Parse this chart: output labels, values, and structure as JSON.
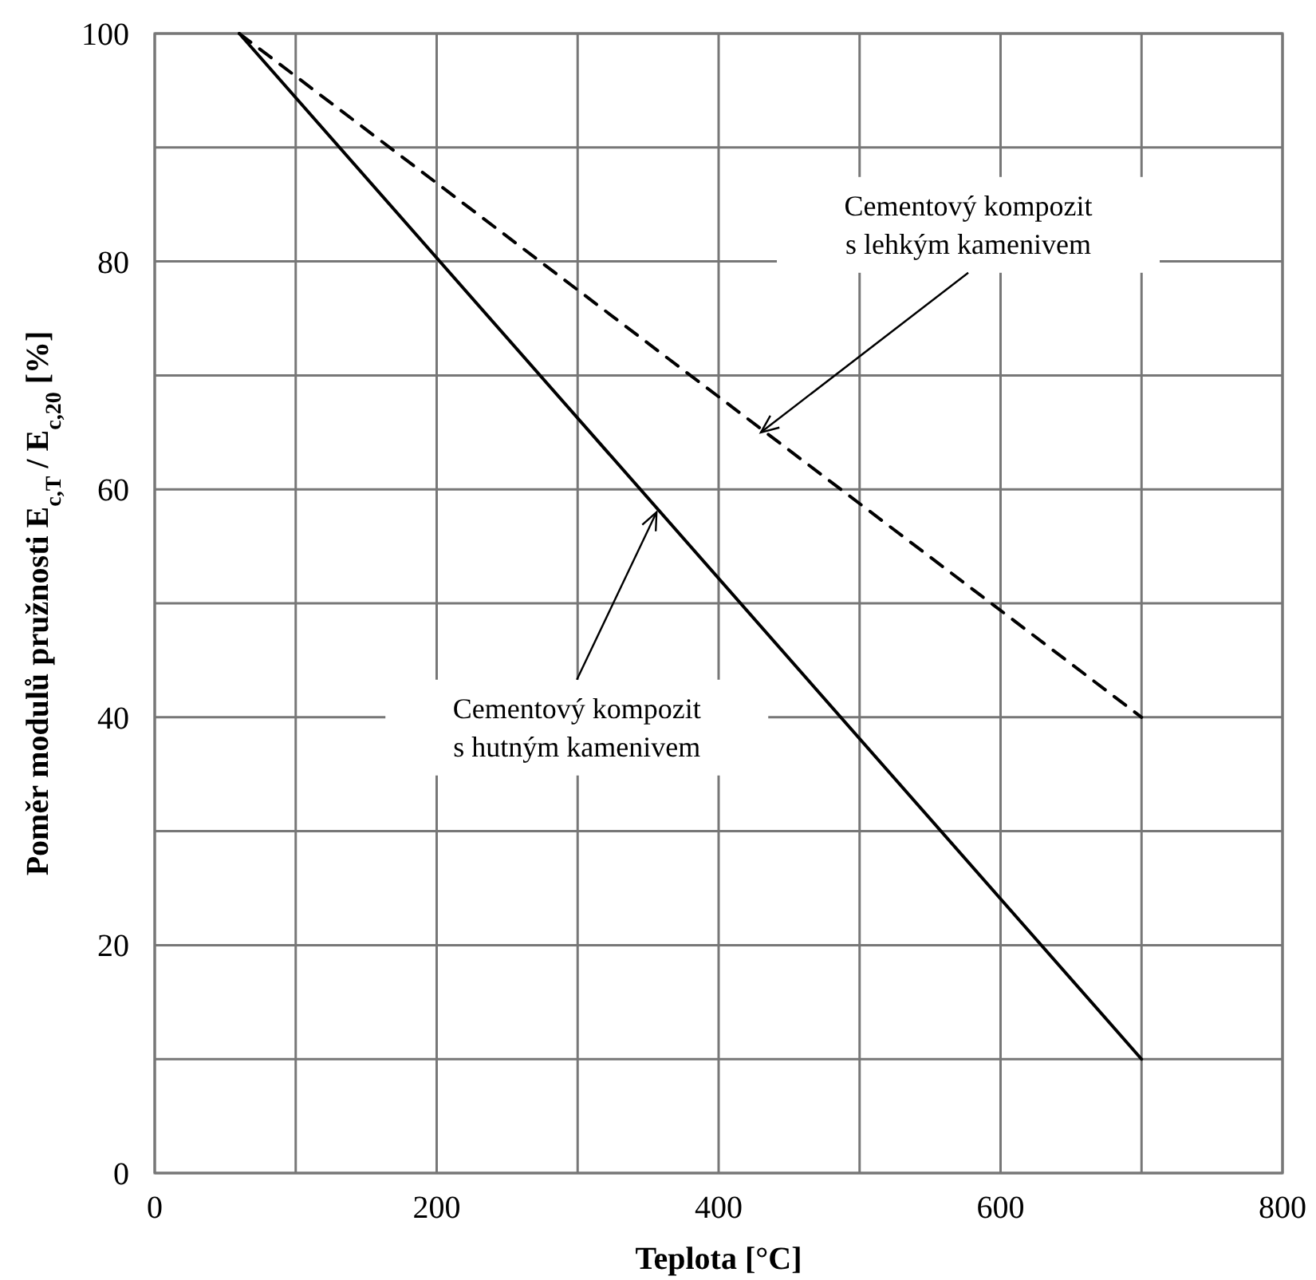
{
  "chart_data": {
    "type": "line",
    "xlabel": "Teplota [°C]",
    "ylabel": "Poměr modulů pružnosti E$_{c,T}$ / E$_{c,20}$ [%]",
    "xlim": [
      0,
      800
    ],
    "ylim": [
      0,
      100
    ],
    "xticks": [
      0,
      {
        "value": 100,
        "label": null
      },
      200,
      {
        "value": 300,
        "label": null
      },
      400,
      {
        "value": 500,
        "label": null
      },
      600,
      {
        "value": 700,
        "label": null
      },
      800
    ],
    "yticks": [
      0,
      {
        "value": 10,
        "label": null
      },
      20,
      {
        "value": 30,
        "label": null
      },
      40,
      {
        "value": 50,
        "label": null
      },
      60,
      {
        "value": 70,
        "label": null
      },
      80,
      {
        "value": 90,
        "label": null
      },
      100
    ],
    "grid": true,
    "marker": "none",
    "x": [
      60,
      700
    ],
    "series": [
      {
        "color": "#000000",
        "values": [
          100,
          10
        ],
        "line_style": "solid"
      },
      {
        "color": "#000000",
        "values": [
          100,
          40
        ],
        "line_style": "dashed"
      }
    ],
    "annotations": [
      {
        "text": "Cementový kompozit\ns lehkým kamenivem",
        "x": 430,
        "y": 65
      },
      {
        "text": "Cementový kompozit\ns hutným kamenivem",
        "x": 356,
        "y": 58
      }
    ]
  }
}
